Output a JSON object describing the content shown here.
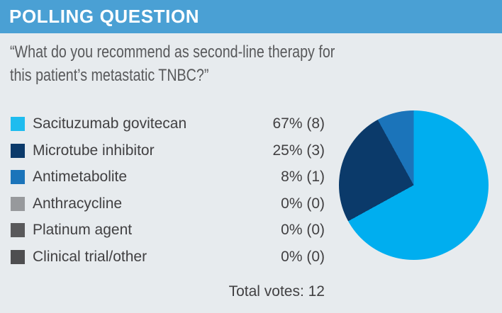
{
  "colors": {
    "header_bg": "#4AA0D4",
    "header_text": "#FFFFFF",
    "page_bg": "#E7EBEE",
    "question_text": "#58595B",
    "legend_text": "#414042"
  },
  "header": {
    "title": "POLLING QUESTION"
  },
  "question": {
    "lines": [
      "“What do you recommend as second-line therapy for",
      "this patient’s metastatic TNBC?”"
    ]
  },
  "legend": {
    "items": [
      {
        "label": "Sacituzumab govitecan",
        "value_text": "67% (8)",
        "color": "#1FBCEF"
      },
      {
        "label": "Microtube inhibitor",
        "value_text": "25% (3)",
        "color": "#0B3A6A"
      },
      {
        "label": "Antimetabolite",
        "value_text": "8% (1)",
        "color": "#1B74BA"
      },
      {
        "label": "Anthracycline",
        "value_text": "0% (0)",
        "color": "#97999C"
      },
      {
        "label": "Platinum agent",
        "value_text": "0% (0)",
        "color": "#59595B"
      },
      {
        "label": "Clinical trial/other",
        "value_text": "0% (0)",
        "color": "#4E4E50"
      }
    ],
    "total_votes_text": "Total votes: 12"
  },
  "chart_data": {
    "type": "pie",
    "title": "",
    "categories": [
      "Sacituzumab govitecan",
      "Microtube inhibitor",
      "Antimetabolite",
      "Anthracycline",
      "Platinum agent",
      "Clinical trial/other"
    ],
    "values": [
      67,
      25,
      8,
      0,
      0,
      0
    ],
    "counts": [
      8,
      3,
      1,
      0,
      0,
      0
    ],
    "total_votes": 12,
    "colors": [
      "#00AEEF",
      "#0B3A6A",
      "#1B74BA",
      "#97999C",
      "#59595B",
      "#4E4E50"
    ],
    "start_angle_deg": 0,
    "direction": "clockwise",
    "legend_position": "left"
  }
}
